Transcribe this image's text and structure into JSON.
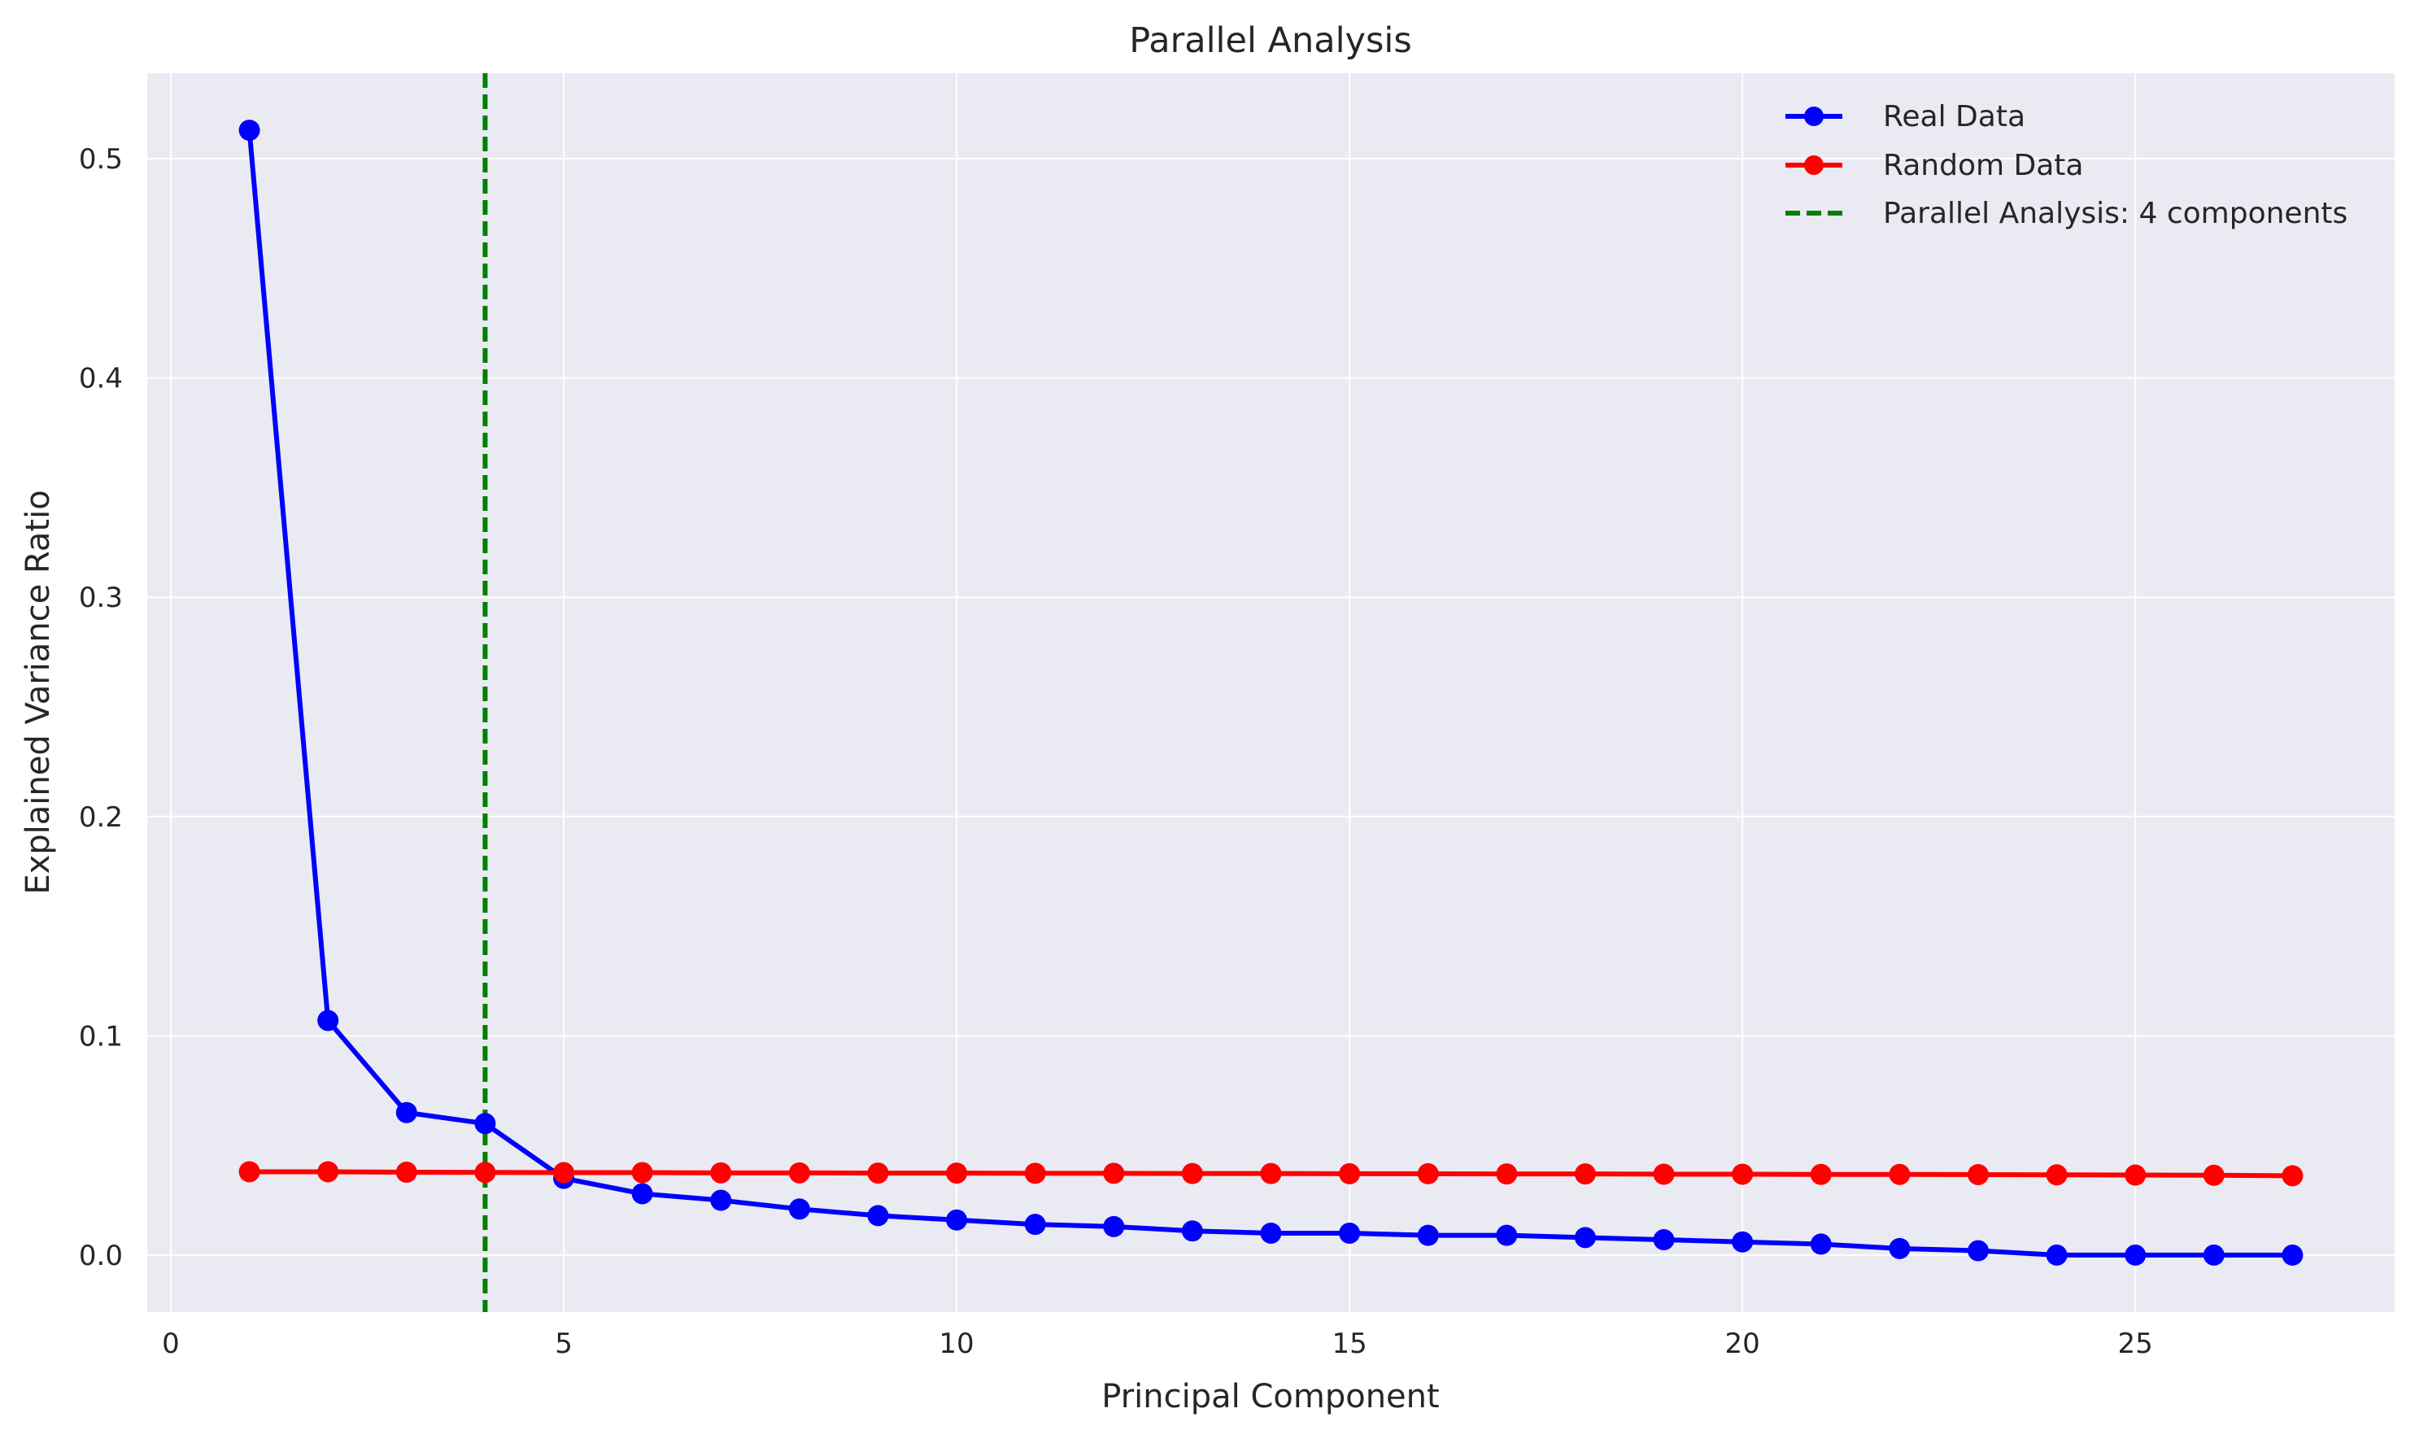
{
  "chart_data": {
    "type": "line",
    "title": "Parallel Analysis",
    "xlabel": "Principal Component",
    "ylabel": "Explained Variance Ratio",
    "xlim": [
      -0.3,
      28.3
    ],
    "ylim": [
      -0.026,
      0.539
    ],
    "xticks": [
      0,
      5,
      10,
      15,
      20,
      25
    ],
    "yticks": [
      0.0,
      0.1,
      0.2,
      0.3,
      0.4,
      0.5
    ],
    "xtick_labels": [
      "0",
      "5",
      "10",
      "15",
      "20",
      "25"
    ],
    "ytick_labels": [
      "0.0",
      "0.1",
      "0.2",
      "0.3",
      "0.4",
      "0.5"
    ],
    "grid": true,
    "legend_position": "top-right",
    "x": [
      1,
      2,
      3,
      4,
      5,
      6,
      7,
      8,
      9,
      10,
      11,
      12,
      13,
      14,
      15,
      16,
      17,
      18,
      19,
      20,
      21,
      22,
      23,
      24,
      25,
      26,
      27
    ],
    "series": [
      {
        "name": "Real Data",
        "color": "#0000ff",
        "marker": "circle",
        "values": [
          0.513,
          0.107,
          0.065,
          0.06,
          0.035,
          0.028,
          0.025,
          0.021,
          0.018,
          0.016,
          0.014,
          0.013,
          0.011,
          0.01,
          0.01,
          0.009,
          0.009,
          0.008,
          0.007,
          0.006,
          0.005,
          0.003,
          0.002,
          0.0,
          0.0,
          0.0,
          0.0
        ]
      },
      {
        "name": "Random Data",
        "color": "#ff0000",
        "marker": "circle",
        "values": [
          0.038,
          0.038,
          0.0378,
          0.0377,
          0.0376,
          0.0376,
          0.0375,
          0.0375,
          0.0374,
          0.0374,
          0.0373,
          0.0373,
          0.0372,
          0.0372,
          0.0371,
          0.0371,
          0.037,
          0.037,
          0.0369,
          0.0369,
          0.0368,
          0.0368,
          0.0367,
          0.0366,
          0.0365,
          0.0364,
          0.0362
        ]
      }
    ],
    "vline": {
      "x": 4,
      "color": "#008000",
      "style": "dashed",
      "label": "Parallel Analysis: 4 components"
    },
    "colors": {
      "plot_background": "#eaeaf2",
      "grid": "#ffffff"
    }
  }
}
